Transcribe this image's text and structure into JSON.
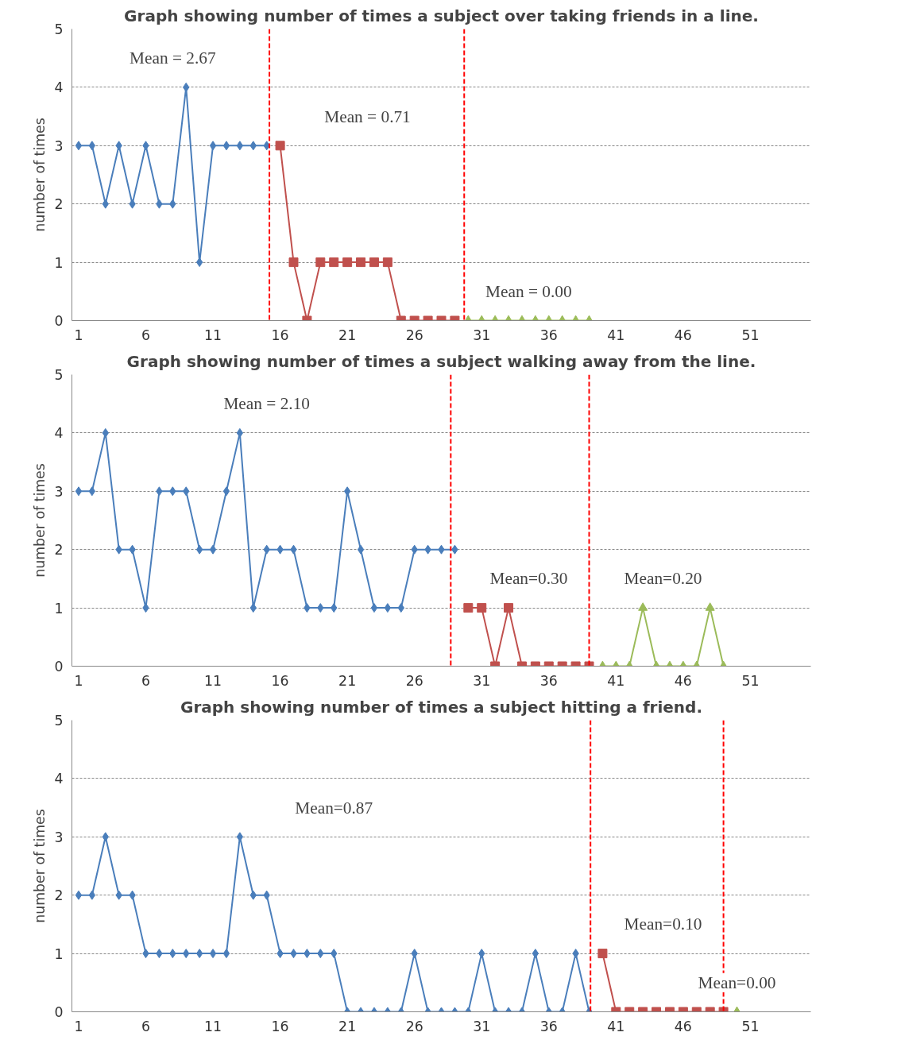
{
  "chart_data": [
    {
      "type": "line",
      "title": "Graph showing number of times a subject over taking friends in a line.",
      "ylabel": "number of times",
      "xlim": [
        0.5,
        55.5
      ],
      "xticks": [
        1,
        6,
        11,
        16,
        21,
        26,
        31,
        36,
        41,
        46,
        51
      ],
      "ylim": [
        0,
        5
      ],
      "yticks": [
        0,
        1,
        2,
        3,
        4,
        5
      ],
      "grid": "y",
      "series": [
        {
          "color": "#4a7ebb",
          "marker": "diamond",
          "x": [
            1,
            2,
            3,
            4,
            5,
            6,
            7,
            8,
            9,
            10,
            11,
            12,
            13,
            14,
            15
          ],
          "values": [
            3,
            3,
            2,
            3,
            2,
            3,
            2,
            2,
            4,
            1,
            3,
            3,
            3,
            3,
            3
          ]
        },
        {
          "color": "#c0504d",
          "marker": "square",
          "x": [
            16,
            17,
            18,
            19,
            20,
            21,
            22,
            23,
            24,
            25,
            26,
            27,
            28,
            29
          ],
          "values": [
            3,
            1,
            0,
            1,
            1,
            1,
            1,
            1,
            1,
            0,
            0,
            0,
            0,
            0
          ]
        },
        {
          "color": "#9bbb59",
          "marker": "triangle",
          "x": [
            30,
            31,
            32,
            33,
            34,
            35,
            36,
            37,
            38,
            39
          ],
          "values": [
            0,
            0,
            0,
            0,
            0,
            0,
            0,
            0,
            0,
            0
          ]
        }
      ],
      "ref_lines": [
        {
          "axis": "x",
          "value": 15.2,
          "color": "#ff0000",
          "line_style": "dashed"
        },
        {
          "axis": "x",
          "value": 29.7,
          "color": "#ff0000",
          "line_style": "dashed"
        }
      ],
      "annotations": [
        "Mean = 2.67",
        "Mean = 0.71",
        "Mean = 0.00"
      ]
    },
    {
      "type": "line",
      "title": "Graph showing number of times a subject walking away from the line.",
      "ylabel": "number of times",
      "xlim": [
        0.5,
        55.5
      ],
      "xticks": [
        1,
        6,
        11,
        16,
        21,
        26,
        31,
        36,
        41,
        46,
        51
      ],
      "ylim": [
        0,
        5
      ],
      "yticks": [
        0,
        1,
        2,
        3,
        4,
        5
      ],
      "grid": "y",
      "series": [
        {
          "color": "#4a7ebb",
          "marker": "diamond",
          "x": [
            1,
            2,
            3,
            4,
            5,
            6,
            7,
            8,
            9,
            10,
            11,
            12,
            13,
            14,
            15,
            16,
            17,
            18,
            19,
            20,
            21,
            22,
            23,
            24,
            25,
            26,
            27,
            28,
            29
          ],
          "values": [
            3,
            3,
            4,
            2,
            2,
            1,
            3,
            3,
            3,
            2,
            2,
            3,
            4,
            1,
            2,
            2,
            2,
            1,
            1,
            1,
            3,
            2,
            1,
            1,
            1,
            2,
            2,
            2,
            2
          ]
        },
        {
          "color": "#c0504d",
          "marker": "square",
          "x": [
            30,
            31,
            32,
            33,
            34,
            35,
            36,
            37,
            38,
            39
          ],
          "values": [
            1,
            1,
            0,
            1,
            0,
            0,
            0,
            0,
            0,
            0
          ]
        },
        {
          "color": "#9bbb59",
          "marker": "triangle",
          "x": [
            40,
            41,
            42,
            43,
            44,
            45,
            46,
            47,
            48,
            49
          ],
          "values": [
            0,
            0,
            0,
            1,
            0,
            0,
            0,
            0,
            1,
            0
          ]
        }
      ],
      "ref_lines": [
        {
          "axis": "x",
          "value": 28.7,
          "color": "#ff0000",
          "line_style": "dashed"
        },
        {
          "axis": "x",
          "value": 39.0,
          "color": "#ff0000",
          "line_style": "dashed"
        }
      ],
      "annotations": [
        "Mean = 2.10",
        "Mean=0.30",
        "Mean=0.20"
      ]
    },
    {
      "type": "line",
      "title": "Graph showing number of times a subject hitting a friend.",
      "ylabel": "number of times",
      "xlim": [
        0.5,
        55.5
      ],
      "xticks": [
        1,
        6,
        11,
        16,
        21,
        26,
        31,
        36,
        41,
        46,
        51
      ],
      "ylim": [
        0,
        5
      ],
      "yticks": [
        0,
        1,
        2,
        3,
        4,
        5
      ],
      "grid": "y",
      "series": [
        {
          "color": "#4a7ebb",
          "marker": "diamond",
          "x": [
            1,
            2,
            3,
            4,
            5,
            6,
            7,
            8,
            9,
            10,
            11,
            12,
            13,
            14,
            15,
            16,
            17,
            18,
            19,
            20,
            21,
            22,
            23,
            24,
            25,
            26,
            27,
            28,
            29,
            30,
            31,
            32,
            33,
            34,
            35,
            36,
            37,
            38,
            39
          ],
          "values": [
            2,
            2,
            3,
            2,
            2,
            1,
            1,
            1,
            1,
            1,
            1,
            1,
            3,
            2,
            2,
            1,
            1,
            1,
            1,
            1,
            0,
            0,
            0,
            0,
            0,
            1,
            0,
            0,
            0,
            0,
            1,
            0,
            0,
            0,
            1,
            0,
            0,
            1,
            0
          ]
        },
        {
          "color": "#c0504d",
          "marker": "square",
          "x": [
            40,
            41,
            42,
            43,
            44,
            45,
            46,
            47,
            48,
            49
          ],
          "values": [
            1,
            0,
            0,
            0,
            0,
            0,
            0,
            0,
            0,
            0
          ]
        },
        {
          "color": "#9bbb59",
          "marker": "triangle",
          "x": [
            50
          ],
          "values": [
            0
          ]
        }
      ],
      "ref_lines": [
        {
          "axis": "x",
          "value": 39.1,
          "color": "#ff0000",
          "line_style": "dashed"
        },
        {
          "axis": "x",
          "value": 49.0,
          "color": "#ff0000",
          "line_style": "dashed"
        }
      ],
      "annotations": [
        "Mean=0.87",
        "Mean=0.10",
        "Mean=0.00"
      ]
    }
  ]
}
